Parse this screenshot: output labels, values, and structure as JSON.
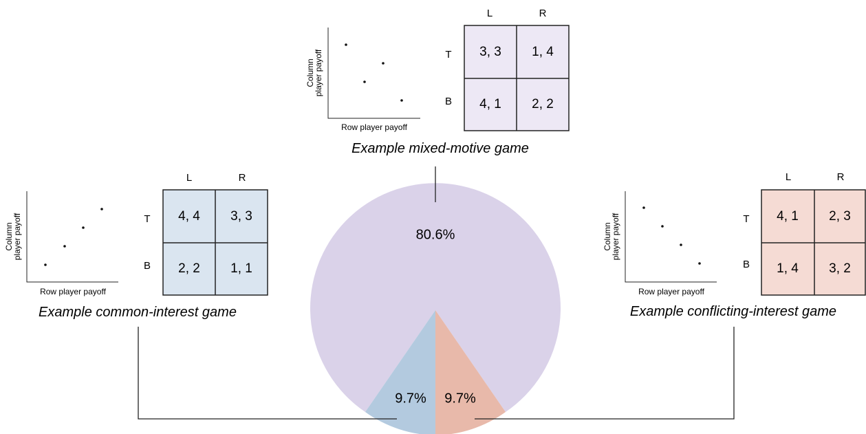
{
  "colors": {
    "mixed": "#dad2e9",
    "common": "#b3cadf",
    "conflicting": "#e8b9aa",
    "mixed_fill": "#ede8f5",
    "common_fill": "#dae5f0",
    "conflicting_fill": "#f5dbd4",
    "line": "#222222"
  },
  "pie": {
    "slices": [
      {
        "name": "mixed-motive",
        "value": 80.6,
        "label": "80.6%"
      },
      {
        "name": "common-interest",
        "value": 9.7,
        "label": "9.7%"
      },
      {
        "name": "conflicting-interest",
        "value": 9.7,
        "label": "9.7%"
      }
    ]
  },
  "games": {
    "mixed": {
      "caption": "Example mixed-motive game",
      "col_headers": [
        "L",
        "R"
      ],
      "row_headers": [
        "T",
        "B"
      ],
      "cells": [
        [
          "3, 3",
          "1, 4"
        ],
        [
          "4, 1",
          "2, 2"
        ]
      ],
      "plot": {
        "xlabel": "Row player payoff",
        "ylabel_1": "Column",
        "ylabel_2": "player payoff"
      }
    },
    "common": {
      "caption": "Example common-interest game",
      "col_headers": [
        "L",
        "R"
      ],
      "row_headers": [
        "T",
        "B"
      ],
      "cells": [
        [
          "4, 4",
          "3, 3"
        ],
        [
          "2, 2",
          "1, 1"
        ]
      ],
      "plot": {
        "xlabel": "Row player payoff",
        "ylabel_1": "Column",
        "ylabel_2": "player payoff"
      }
    },
    "conflicting": {
      "caption": "Example conflicting-interest game",
      "col_headers": [
        "L",
        "R"
      ],
      "row_headers": [
        "T",
        "B"
      ],
      "cells": [
        [
          "4, 1",
          "2, 3"
        ],
        [
          "1, 4",
          "3, 2"
        ]
      ],
      "plot": {
        "xlabel": "Row player payoff",
        "ylabel_1": "Column",
        "ylabel_2": "player payoff"
      }
    }
  }
}
